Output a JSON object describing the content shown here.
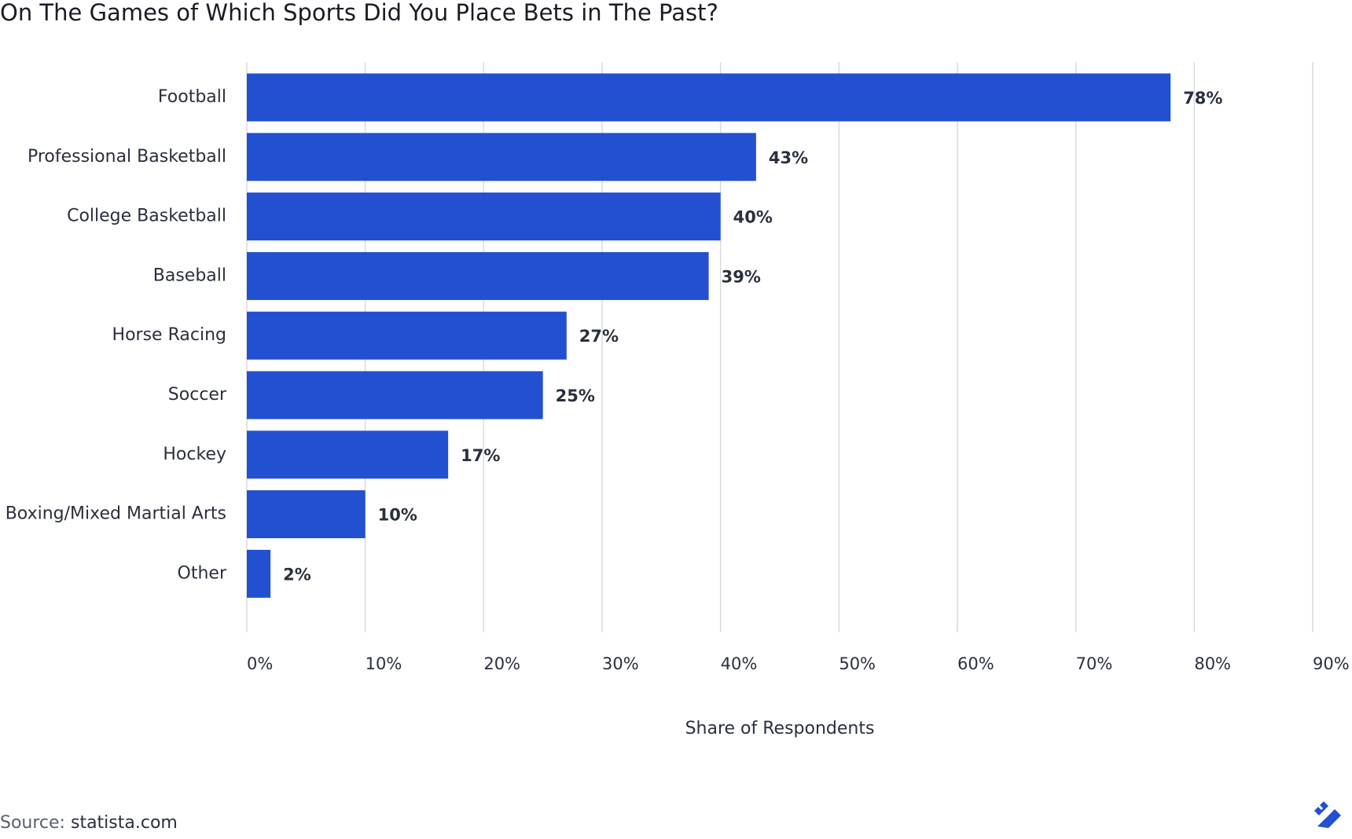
{
  "chart_data": {
    "type": "bar",
    "orientation": "horizontal",
    "title": "On The Games of Which Sports Did You Place Bets in The Past?",
    "x_label": "Share of Respondents",
    "categories": [
      "Football",
      "Professional Basketball",
      "College Basketball",
      "Baseball",
      "Horse Racing",
      "Soccer",
      "Hockey",
      "Boxing/Mixed Martial Arts",
      "Other"
    ],
    "values": [
      78,
      43,
      40,
      39,
      27,
      25,
      17,
      10,
      2
    ],
    "value_labels": [
      "78%",
      "43%",
      "40%",
      "39%",
      "27%",
      "25%",
      "17%",
      "10%",
      "2%"
    ],
    "color": "#2250d0",
    "xlim": [
      0,
      90
    ],
    "xticks": [
      {
        "value": 0,
        "label": "0%"
      },
      {
        "value": 10,
        "label": "10%"
      },
      {
        "value": 20,
        "label": "20%"
      },
      {
        "value": 30,
        "label": "30%"
      },
      {
        "value": 40,
        "label": "40%"
      },
      {
        "value": 50,
        "label": "50%"
      },
      {
        "value": 60,
        "label": "60%"
      },
      {
        "value": 70,
        "label": "70%"
      },
      {
        "value": 80,
        "label": "80%"
      },
      {
        "value": 90,
        "label": "90%"
      }
    ],
    "grid": true
  },
  "footer": {
    "source_label": "Source:",
    "source": "statista.com"
  }
}
